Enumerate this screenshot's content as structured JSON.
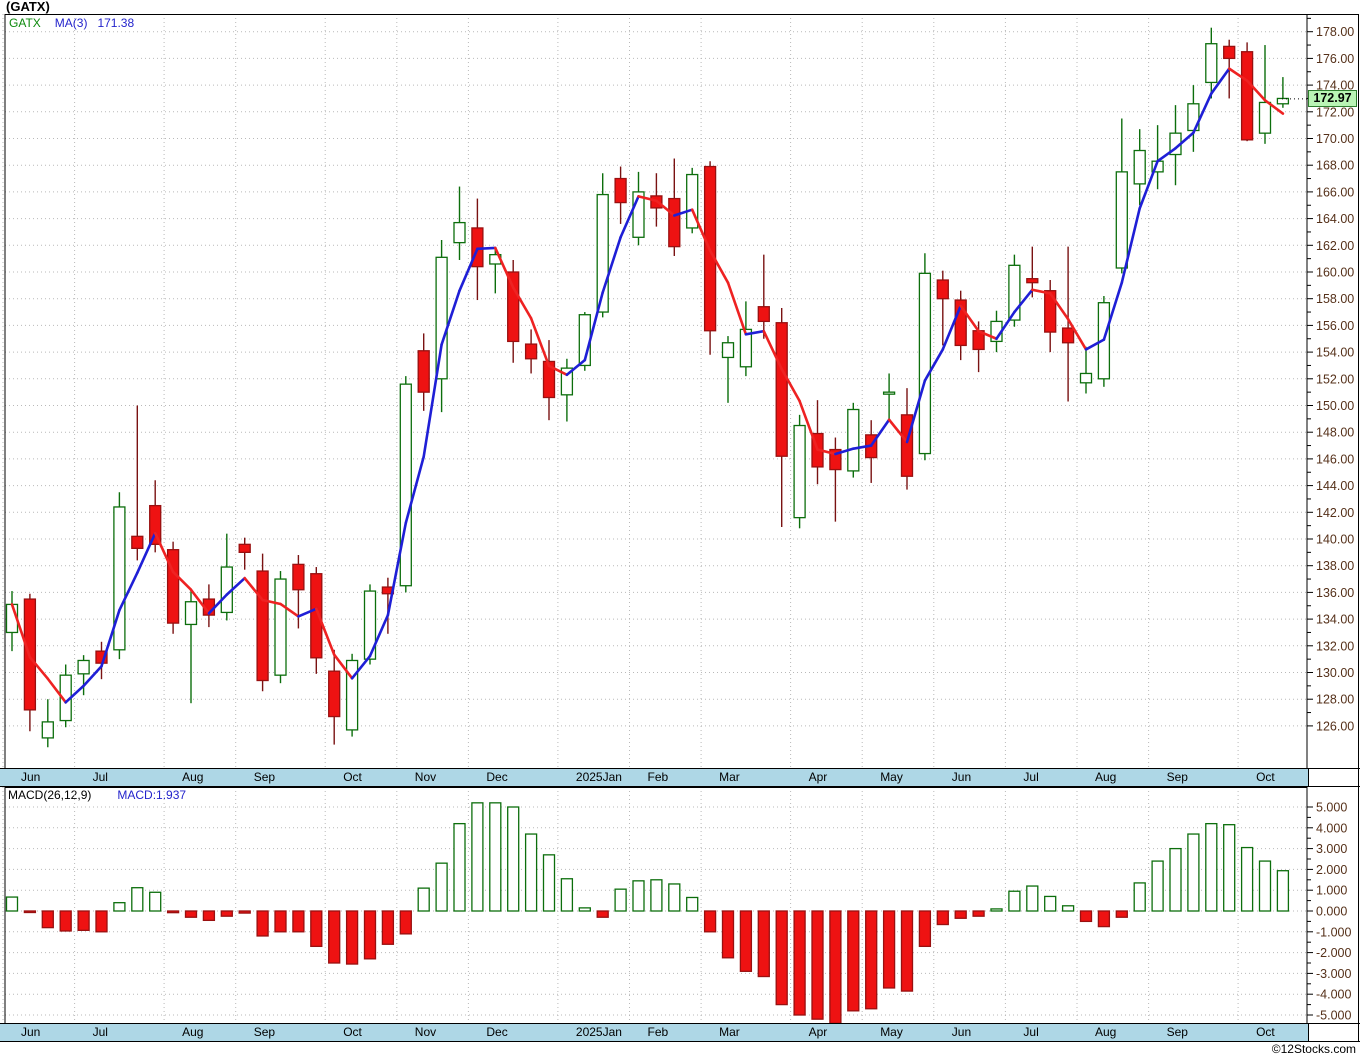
{
  "window": {
    "title": "(GATX)",
    "watermark": "©12Stocks.com"
  },
  "price_panel": {
    "legend": {
      "symbol": "GATX",
      "ma_label": "MA(3)",
      "ma_value": "171.38"
    },
    "last_price_badge": "172.97",
    "y_axis": {
      "min": 126,
      "max": 178,
      "step": 2,
      "minor_step": 1,
      "label_format": "0.00"
    }
  },
  "macd_panel": {
    "legend_label": "MACD(26,12,9)",
    "legend_value": "MACD:1.937",
    "y_axis": {
      "min": -5,
      "max": 5,
      "step": 1,
      "minor_step": 0.5,
      "label_format": "0.000"
    }
  },
  "x_axis": {
    "months": [
      {
        "label": "Jun",
        "start": 0
      },
      {
        "label": "Jul",
        "start": 4
      },
      {
        "label": "Aug",
        "start": 9
      },
      {
        "label": "Sep",
        "start": 13
      },
      {
        "label": "Oct",
        "start": 18
      },
      {
        "label": "Nov",
        "start": 22
      },
      {
        "label": "Dec",
        "start": 26
      },
      {
        "label": "2025Jan",
        "start": 31
      },
      {
        "label": "Feb",
        "start": 35
      },
      {
        "label": "Mar",
        "start": 39
      },
      {
        "label": "Apr",
        "start": 44
      },
      {
        "label": "May",
        "start": 48
      },
      {
        "label": "Jun",
        "start": 52
      },
      {
        "label": "Jul",
        "start": 56
      },
      {
        "label": "Aug",
        "start": 60
      },
      {
        "label": "Sep",
        "start": 64
      },
      {
        "label": "Oct",
        "start": 69
      }
    ]
  },
  "colors": {
    "up_stroke": "#0c6e0c",
    "up_fill": "#ffffff",
    "down_fill": "#ee1212",
    "down_stroke": "#991010",
    "down_wick": "#7a1212",
    "ma_up": "#1f1fd6",
    "ma_down": "#ee2222",
    "grid": "#b9b9b9",
    "axis_text": "#553019",
    "border": "#000000",
    "band_bg": "#aed7e6",
    "badge_bg": "#b9f4b4",
    "badge_border": "#2e7d2e",
    "legend_symbol": "#0c8a0c",
    "legend_value": "#2424cc"
  },
  "chart_data": [
    {
      "type": "candlestick",
      "title": "(GATX)",
      "series_name": "GATX",
      "overlay": "MA(3) colored blue when rising, red when falling",
      "overlay_last_value": 171.38,
      "last_price": 172.97,
      "interval": "weekly",
      "x_months": [
        "Jun",
        "Jul",
        "Aug",
        "Sep",
        "Oct",
        "Nov",
        "Dec",
        "2025Jan",
        "Feb",
        "Mar",
        "Apr",
        "May",
        "Jun",
        "Jul",
        "Aug",
        "Sep",
        "Oct"
      ],
      "y_ticks_range": [
        126,
        178
      ],
      "y_tick_step": 2,
      "grid": true,
      "ohlc": [
        [
          133.0,
          136.1,
          131.6,
          135.1
        ],
        [
          135.5,
          135.9,
          125.6,
          127.2
        ],
        [
          125.1,
          128.0,
          124.4,
          126.3
        ],
        [
          126.4,
          130.6,
          125.9,
          129.8
        ],
        [
          129.9,
          131.3,
          128.3,
          130.9
        ],
        [
          131.6,
          132.3,
          129.5,
          130.7
        ],
        [
          131.7,
          143.5,
          131.0,
          142.4
        ],
        [
          140.2,
          150.0,
          138.4,
          139.3
        ],
        [
          142.5,
          144.4,
          139.0,
          139.6
        ],
        [
          139.2,
          139.8,
          132.9,
          133.7
        ],
        [
          133.6,
          136.2,
          127.7,
          135.3
        ],
        [
          135.5,
          136.6,
          133.4,
          134.3
        ],
        [
          134.5,
          140.4,
          133.9,
          137.9
        ],
        [
          139.6,
          140.1,
          137.7,
          139.0
        ],
        [
          137.6,
          138.9,
          128.6,
          129.4
        ],
        [
          129.8,
          137.6,
          129.2,
          137.0
        ],
        [
          138.1,
          138.8,
          133.3,
          136.2
        ],
        [
          137.4,
          137.9,
          129.9,
          131.1
        ],
        [
          130.1,
          131.7,
          124.6,
          126.7
        ],
        [
          125.7,
          131.4,
          125.2,
          130.9
        ],
        [
          131.0,
          136.6,
          130.6,
          136.1
        ],
        [
          136.4,
          137.1,
          132.9,
          135.9
        ],
        [
          136.5,
          152.2,
          136.0,
          151.6
        ],
        [
          154.1,
          155.4,
          149.6,
          151.0
        ],
        [
          152.0,
          162.4,
          149.5,
          161.1
        ],
        [
          162.2,
          166.4,
          160.9,
          163.7
        ],
        [
          163.3,
          165.5,
          157.9,
          160.4
        ],
        [
          160.6,
          161.8,
          158.4,
          161.3
        ],
        [
          160.0,
          160.9,
          153.2,
          154.8
        ],
        [
          154.6,
          155.7,
          152.4,
          153.5
        ],
        [
          153.3,
          154.9,
          148.9,
          150.6
        ],
        [
          150.8,
          153.5,
          148.8,
          152.8
        ],
        [
          153.0,
          157.0,
          152.6,
          156.8
        ],
        [
          157.0,
          167.4,
          156.6,
          165.8
        ],
        [
          167.0,
          167.9,
          163.6,
          165.2
        ],
        [
          162.6,
          167.5,
          162.0,
          166.0
        ],
        [
          165.7,
          167.4,
          163.4,
          164.8
        ],
        [
          165.5,
          168.5,
          161.2,
          161.9
        ],
        [
          163.3,
          167.8,
          162.9,
          167.3
        ],
        [
          167.9,
          168.3,
          153.8,
          155.6
        ],
        [
          153.6,
          155.2,
          150.2,
          154.7
        ],
        [
          152.9,
          157.8,
          152.2,
          155.7
        ],
        [
          157.4,
          161.3,
          155.0,
          156.3
        ],
        [
          156.2,
          157.3,
          140.9,
          146.2
        ],
        [
          141.6,
          149.3,
          140.8,
          148.5
        ],
        [
          147.9,
          150.4,
          144.1,
          145.4
        ],
        [
          146.7,
          147.6,
          141.3,
          145.2
        ],
        [
          145.1,
          150.2,
          144.6,
          149.7
        ],
        [
          147.8,
          148.9,
          144.2,
          146.1
        ],
        [
          150.9,
          152.4,
          148.9,
          151.0
        ],
        [
          149.3,
          151.3,
          143.7,
          144.7
        ],
        [
          146.4,
          161.4,
          145.9,
          159.9
        ],
        [
          159.4,
          160.1,
          154.5,
          158.0
        ],
        [
          157.9,
          158.6,
          153.4,
          154.5
        ],
        [
          155.6,
          156.3,
          152.5,
          154.2
        ],
        [
          154.8,
          157.1,
          154.0,
          156.3
        ],
        [
          156.4,
          161.3,
          155.9,
          160.5
        ],
        [
          159.5,
          161.9,
          158.1,
          159.2
        ],
        [
          158.6,
          159.4,
          154.0,
          155.5
        ],
        [
          155.8,
          161.9,
          150.3,
          154.7
        ],
        [
          151.7,
          154.4,
          150.9,
          152.4
        ],
        [
          152.0,
          158.2,
          151.4,
          157.7
        ],
        [
          160.3,
          171.5,
          159.9,
          167.5
        ],
        [
          166.6,
          170.7,
          165.0,
          169.1
        ],
        [
          167.5,
          171.0,
          166.2,
          168.3
        ],
        [
          168.8,
          172.5,
          166.5,
          170.4
        ],
        [
          170.6,
          174.0,
          169.0,
          172.6
        ],
        [
          174.2,
          178.3,
          173.0,
          177.1
        ],
        [
          176.9,
          177.4,
          173.0,
          176.0
        ],
        [
          176.5,
          177.2,
          169.8,
          169.9
        ],
        [
          170.4,
          177.0,
          169.6,
          172.7
        ],
        [
          172.6,
          174.6,
          172.3,
          173.0
        ]
      ]
    },
    {
      "type": "bar",
      "title": "MACD(26,12,9)",
      "last_value": 1.937,
      "y_ticks_range": [
        -5,
        5
      ],
      "y_tick_step": 1,
      "grid": true,
      "values": [
        0.67,
        -0.07,
        -0.8,
        -0.96,
        -0.93,
        -1.0,
        0.4,
        1.12,
        0.9,
        -0.08,
        -0.3,
        -0.45,
        -0.25,
        -0.1,
        -1.2,
        -1.0,
        -1.0,
        -1.7,
        -2.5,
        -2.55,
        -2.3,
        -1.6,
        -1.1,
        1.1,
        2.3,
        4.2,
        5.2,
        5.2,
        5.0,
        3.7,
        2.7,
        1.55,
        0.15,
        -0.3,
        1.05,
        1.45,
        1.5,
        1.3,
        0.65,
        -1.0,
        -2.25,
        -2.9,
        -3.15,
        -4.5,
        -5.0,
        -5.2,
        -5.4,
        -4.8,
        -4.7,
        -3.7,
        -3.85,
        -1.7,
        -0.65,
        -0.35,
        -0.25,
        0.1,
        0.95,
        1.2,
        0.7,
        0.25,
        -0.5,
        -0.75,
        -0.3,
        1.35,
        2.4,
        3.0,
        3.7,
        4.2,
        4.15,
        3.05,
        2.4,
        1.937
      ]
    }
  ]
}
